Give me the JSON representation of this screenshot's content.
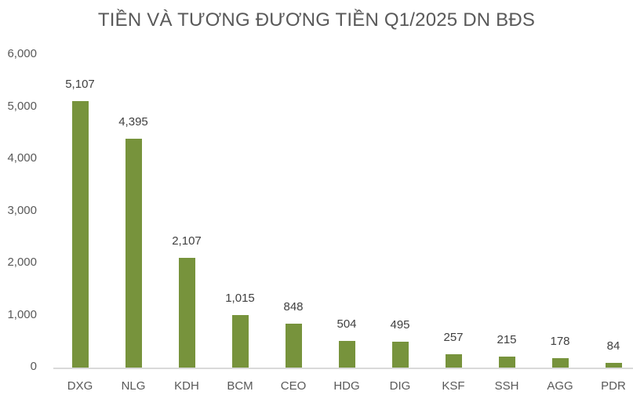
{
  "chart_data": {
    "type": "bar",
    "title": "TIỀN VÀ TƯƠNG ĐƯƠNG TIỀN Q1/2025 DN BĐS",
    "xlabel": "",
    "ylabel": "",
    "categories": [
      "DXG",
      "NLG",
      "KDH",
      "BCM",
      "CEO",
      "HDG",
      "DIG",
      "KSF",
      "SSH",
      "AGG",
      "PDR"
    ],
    "values": [
      5107,
      4395,
      2107,
      1015,
      848,
      504,
      495,
      257,
      215,
      178,
      84
    ],
    "value_labels": [
      "5,107",
      "4,395",
      "2,107",
      "1,015",
      "848",
      "504",
      "495",
      "257",
      "215",
      "178",
      "84"
    ],
    "ylim": [
      0,
      6000
    ],
    "yticks": [
      "0",
      "1,000",
      "2,000",
      "3,000",
      "4,000",
      "5,000",
      "6,000"
    ],
    "ytick_values": [
      0,
      1000,
      2000,
      3000,
      4000,
      5000,
      6000
    ],
    "grid": false,
    "legend": null,
    "bar_color": "#77933C"
  }
}
